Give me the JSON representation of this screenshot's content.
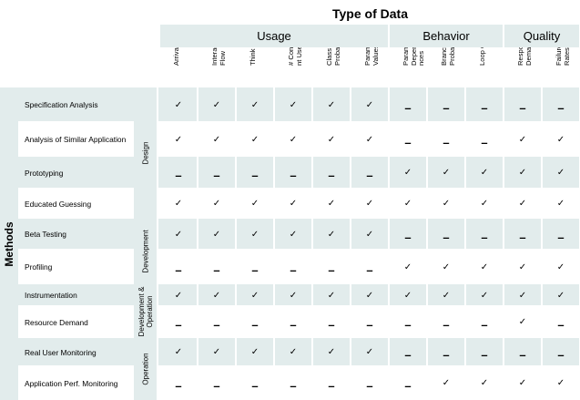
{
  "title": "Type of Data",
  "axis_label": "Methods",
  "groups": [
    {
      "label": "Usage"
    },
    {
      "label": "Behavior"
    },
    {
      "label": "Quality"
    }
  ],
  "columns": [
    "Arrival Rate",
    "Interactio n Flow",
    "Think Time",
    "# Concurre nt Users",
    "Class Probabilit ies",
    "Paramete r Values",
    "Paramete r Depende nces",
    "Branch Probabilit ies",
    "Loop Counts",
    "Respons e Demands",
    "Failure Rates"
  ],
  "phases": [
    {
      "label": "Design"
    },
    {
      "label": "Development"
    },
    {
      "label": "Development & Operation"
    },
    {
      "label": "Operation"
    }
  ],
  "rows": [
    {
      "method": "Specification Analysis",
      "marks": [
        "✓",
        "✓",
        "✓",
        "✓",
        "✓",
        "✓",
        "–",
        "–",
        "–",
        "–",
        "–"
      ]
    },
    {
      "method": "Analysis of Similar Application",
      "marks": [
        "✓",
        "✓",
        "✓",
        "✓",
        "✓",
        "✓",
        "–",
        "–",
        "–",
        "✓",
        "✓"
      ]
    },
    {
      "method": "Prototyping",
      "marks": [
        "–",
        "–",
        "–",
        "–",
        "–",
        "–",
        "✓",
        "✓",
        "✓",
        "✓",
        "✓"
      ]
    },
    {
      "method": "Educated Guessing",
      "marks": [
        "✓",
        "✓",
        "✓",
        "✓",
        "✓",
        "✓",
        "✓",
        "✓",
        "✓",
        "✓",
        "✓"
      ]
    },
    {
      "method": "Beta Testing",
      "marks": [
        "✓",
        "✓",
        "✓",
        "✓",
        "✓",
        "✓",
        "–",
        "–",
        "–",
        "–",
        "–"
      ]
    },
    {
      "method": "Profiling",
      "marks": [
        "–",
        "–",
        "–",
        "–",
        "–",
        "–",
        "✓",
        "✓",
        "✓",
        "✓",
        "✓"
      ]
    },
    {
      "method": "Instrumentation",
      "marks": [
        "✓",
        "✓",
        "✓",
        "✓",
        "✓",
        "✓",
        "✓",
        "✓",
        "✓",
        "✓",
        "✓"
      ]
    },
    {
      "method": "Resource Demand",
      "marks": [
        "–",
        "–",
        "–",
        "–",
        "–",
        "–",
        "–",
        "–",
        "–",
        "✓",
        "–"
      ]
    },
    {
      "method": "Real User Monitoring",
      "marks": [
        "✓",
        "✓",
        "✓",
        "✓",
        "✓",
        "✓",
        "–",
        "–",
        "–",
        "–",
        "–"
      ]
    },
    {
      "method": "Application Perf. Monitoring",
      "marks": [
        "–",
        "–",
        "–",
        "–",
        "–",
        "–",
        "–",
        "✓",
        "✓",
        "✓",
        "✓"
      ]
    }
  ]
}
